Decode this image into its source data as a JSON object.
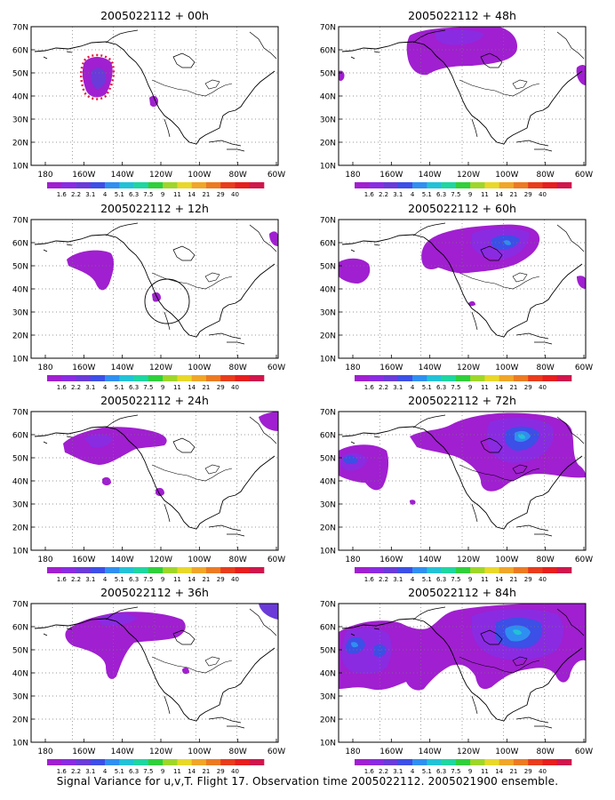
{
  "colorbar": {
    "colors": [
      "#a01fd0",
      "#8a2be2",
      "#6a3bd8",
      "#3c4fe6",
      "#2f8ff0",
      "#22c2d6",
      "#1ed6a0",
      "#2fd03a",
      "#9fd62a",
      "#e8d82a",
      "#f0a628",
      "#ec7a22",
      "#e83c1c",
      "#e61e1e",
      "#d0164c"
    ],
    "labels": [
      "1.6",
      "2.2",
      "3.1",
      "4",
      "5.1",
      "6.3",
      "7.5",
      "9",
      "11",
      "14",
      "21",
      "29",
      "40"
    ]
  },
  "axes": {
    "x_ticks": [
      "180",
      "160W",
      "140W",
      "120W",
      "100W",
      "80W",
      "60W"
    ],
    "y_ticks": [
      "10N",
      "20N",
      "30N",
      "40N",
      "50N",
      "60N",
      "70N"
    ]
  },
  "caption": "Signal Variance for u,v,T. Flight 17. Observation time 2005022112. 2005021900 ensemble.",
  "chart_data": [
    {
      "type": "heatmap",
      "title": "2005022112 + 00h",
      "xlim": [
        -180,
        -60
      ],
      "ylim": [
        10,
        70
      ],
      "xlabel": "",
      "ylabel": "",
      "features": [
        {
          "lon": -154,
          "lat": 48,
          "level": "2.2-4",
          "note": "red dotted high-variance ring"
        },
        {
          "lon": -121,
          "lat": 38,
          "level": "1.6"
        }
      ]
    },
    {
      "type": "heatmap",
      "title": "2005022112 + 12h",
      "xlim": [
        -180,
        -60
      ],
      "ylim": [
        10,
        70
      ],
      "xlabel": "",
      "ylabel": "",
      "features": [
        {
          "lon": -160,
          "lat": 53,
          "level": "1.6"
        },
        {
          "lon": -122,
          "lat": 36,
          "level": "1.6"
        },
        {
          "lon": -63,
          "lat": 63,
          "level": "1.6"
        }
      ]
    },
    {
      "type": "heatmap",
      "title": "2005022112 + 24h",
      "xlim": [
        -180,
        -60
      ],
      "ylim": [
        10,
        70
      ],
      "xlabel": "",
      "ylabel": "",
      "features": [
        {
          "lon": -158,
          "lat": 57,
          "level": "1.6-2.2"
        },
        {
          "lon": -153,
          "lat": 41,
          "level": "1.6"
        },
        {
          "lon": -121,
          "lat": 35,
          "level": "1.6"
        },
        {
          "lon": -65,
          "lat": 64,
          "level": "1.6-3.1"
        }
      ]
    },
    {
      "type": "heatmap",
      "title": "2005022112 + 36h",
      "xlim": [
        -180,
        -60
      ],
      "ylim": [
        10,
        70
      ],
      "xlabel": "",
      "ylabel": "",
      "features": [
        {
          "lon": -143,
          "lat": 58,
          "level": "1.6-2.2"
        },
        {
          "lon": -148,
          "lat": 48,
          "level": "1.6"
        },
        {
          "lon": -124,
          "lat": 38,
          "level": "1.6"
        },
        {
          "lon": -65,
          "lat": 66,
          "level": "2.2-4"
        }
      ]
    },
    {
      "type": "heatmap",
      "title": "2005022112 + 48h",
      "xlim": [
        -180,
        -60
      ],
      "ylim": [
        10,
        70
      ],
      "xlabel": "",
      "ylabel": "",
      "features": [
        {
          "lon": -140,
          "lat": 60,
          "level": "1.6-3.1"
        },
        {
          "lon": -62,
          "lat": 45,
          "level": "1.6"
        }
      ]
    },
    {
      "type": "heatmap",
      "title": "2005022112 + 60h",
      "xlim": [
        -180,
        -60
      ],
      "ylim": [
        10,
        70
      ],
      "xlabel": "",
      "ylabel": "",
      "features": [
        {
          "lon": -110,
          "lat": 58,
          "level": "1.6-5.1"
        },
        {
          "lon": -175,
          "lat": 45,
          "level": "1.6"
        }
      ]
    },
    {
      "type": "heatmap",
      "title": "2005022112 + 72h",
      "xlim": [
        -180,
        -60
      ],
      "ylim": [
        10,
        70
      ],
      "xlabel": "",
      "ylabel": "",
      "features": [
        {
          "lon": -100,
          "lat": 57,
          "level": "1.6-5.1"
        },
        {
          "lon": -172,
          "lat": 47,
          "level": "1.6-3.1"
        }
      ]
    },
    {
      "type": "heatmap",
      "title": "2005022112 + 84h",
      "xlim": [
        -180,
        -60
      ],
      "ylim": [
        10,
        70
      ],
      "xlabel": "",
      "ylabel": "",
      "features": [
        {
          "lon": -100,
          "lat": 56,
          "level": "1.6-5.1"
        },
        {
          "lon": -172,
          "lat": 48,
          "level": "1.6-5.1"
        }
      ]
    }
  ]
}
